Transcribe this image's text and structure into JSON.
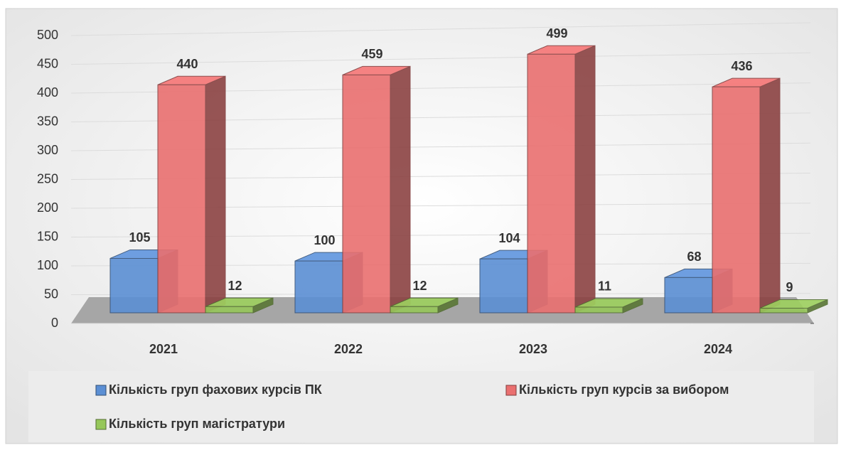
{
  "chart_data": {
    "type": "bar3d",
    "categories": [
      "2021",
      "2022",
      "2023",
      "2024"
    ],
    "series": [
      {
        "name": "Кількість груп фахових курсів ПК",
        "color": "#5b8fd4",
        "values": [
          105,
          100,
          104,
          68
        ]
      },
      {
        "name": "Кількість груп курсів за вибором",
        "color": "#ea7070",
        "values": [
          440,
          459,
          499,
          436
        ]
      },
      {
        "name": "Кількість груп магістратури",
        "color": "#96c75a",
        "values": [
          12,
          12,
          11,
          9
        ]
      }
    ],
    "ylim": [
      0,
      500
    ],
    "yticks": [
      0,
      50,
      100,
      150,
      200,
      250,
      300,
      350,
      400,
      450,
      500
    ],
    "grid": true
  }
}
